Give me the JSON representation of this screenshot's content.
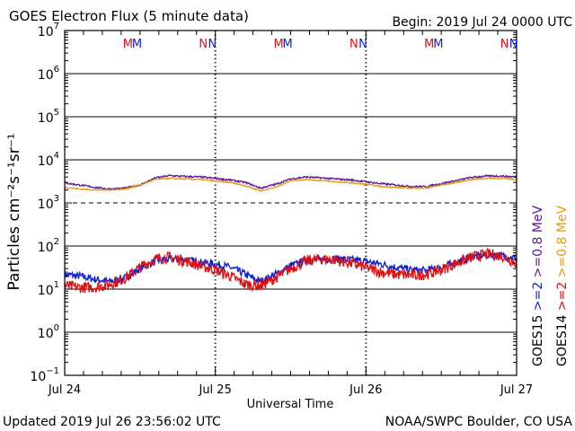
{
  "chart_data": {
    "type": "line",
    "title": "GOES Electron Flux (5 minute data)",
    "begin_label": "Begin: 2019 Jul 24 0000 UTC",
    "xlabel": "Universal Time",
    "ylabel": "Particles cm⁻²s⁻¹sr⁻¹",
    "footer_left": "Updated 2019 Jul 26 23:56:02 UTC",
    "footer_right": "NOAA/SWPC Boulder, CO USA",
    "y_scale": "log",
    "ylim": [
      0.1,
      10000000
    ],
    "y_ticks": [
      {
        "base": "10",
        "exp": "7"
      },
      {
        "base": "10",
        "exp": "6"
      },
      {
        "base": "10",
        "exp": "5"
      },
      {
        "base": "10",
        "exp": "4"
      },
      {
        "base": "10",
        "exp": "3"
      },
      {
        "base": "10",
        "exp": "2"
      },
      {
        "base": "10",
        "exp": "1"
      },
      {
        "base": "10",
        "exp": "0"
      },
      {
        "base": "10",
        "exp": "−1"
      }
    ],
    "xlim_days": [
      0,
      3
    ],
    "x_ticks": [
      "Jul 24",
      "Jul 25",
      "Jul 26",
      "Jul 27"
    ],
    "alert_threshold": 1000,
    "eclipse_markers": [
      {
        "label": "M",
        "day": 0.42,
        "color": "#e01010"
      },
      {
        "label": "M",
        "day": 0.48,
        "color": "#1020d0"
      },
      {
        "label": "N",
        "day": 0.92,
        "color": "#e01010"
      },
      {
        "label": "N",
        "day": 0.98,
        "color": "#1020d0"
      },
      {
        "label": "M",
        "day": 1.42,
        "color": "#e01010"
      },
      {
        "label": "M",
        "day": 1.48,
        "color": "#1020d0"
      },
      {
        "label": "N",
        "day": 1.92,
        "color": "#e01010"
      },
      {
        "label": "N",
        "day": 1.98,
        "color": "#1020d0"
      },
      {
        "label": "M",
        "day": 2.42,
        "color": "#e01010"
      },
      {
        "label": "M",
        "day": 2.48,
        "color": "#1020d0"
      },
      {
        "label": "N",
        "day": 2.92,
        "color": "#e01010"
      },
      {
        "label": "N",
        "day": 2.98,
        "color": "#1020d0"
      }
    ],
    "series": [
      {
        "name": "GOES15 >=0.8 MeV",
        "sat": "GOES15",
        "energy": ">=0.8",
        "unit": "MeV",
        "color": "#5a1a9a",
        "noise": 0.02,
        "x": [
          0,
          0.1,
          0.2,
          0.3,
          0.4,
          0.5,
          0.6,
          0.7,
          0.8,
          0.9,
          1.0,
          1.1,
          1.2,
          1.3,
          1.4,
          1.5,
          1.6,
          1.7,
          1.8,
          1.9,
          2.0,
          2.1,
          2.2,
          2.3,
          2.4,
          2.5,
          2.6,
          2.7,
          2.8,
          2.9,
          3.0
        ],
        "y": [
          2900,
          2600,
          2300,
          2100,
          2200,
          2600,
          3800,
          4300,
          4100,
          4000,
          3700,
          3400,
          3000,
          2200,
          2700,
          3600,
          4000,
          3800,
          3600,
          3400,
          3100,
          2800,
          2600,
          2400,
          2400,
          2800,
          3300,
          3900,
          4200,
          4200,
          4000
        ]
      },
      {
        "name": "GOES14 >=0.8 MeV",
        "sat": "GOES14",
        "energy": ">=0.8",
        "unit": "MeV",
        "color": "#e89a10",
        "noise": 0.015,
        "x": [
          0,
          0.1,
          0.2,
          0.3,
          0.4,
          0.5,
          0.6,
          0.7,
          0.8,
          0.9,
          1.0,
          1.1,
          1.2,
          1.3,
          1.4,
          1.5,
          1.6,
          1.7,
          1.8,
          1.9,
          2.0,
          2.1,
          2.2,
          2.3,
          2.4,
          2.5,
          2.6,
          2.7,
          2.8,
          2.9,
          3.0
        ],
        "y": [
          2300,
          2100,
          2000,
          2000,
          2100,
          2600,
          3500,
          3700,
          3600,
          3500,
          3200,
          3000,
          2500,
          1900,
          2300,
          3300,
          3500,
          3300,
          3100,
          2900,
          2700,
          2400,
          2300,
          2200,
          2200,
          2600,
          3000,
          3500,
          3700,
          3700,
          3500
        ]
      },
      {
        "name": "GOES15 >=2 MeV",
        "sat": "GOES15",
        "energy": ">=2",
        "unit": "MeV",
        "color": "#1020d0",
        "noise": 0.09,
        "x": [
          0,
          0.1,
          0.2,
          0.3,
          0.4,
          0.5,
          0.6,
          0.7,
          0.8,
          0.9,
          1.0,
          1.1,
          1.2,
          1.3,
          1.4,
          1.5,
          1.6,
          1.7,
          1.8,
          1.9,
          2.0,
          2.1,
          2.2,
          2.3,
          2.4,
          2.5,
          2.6,
          2.7,
          2.8,
          2.9,
          3.0
        ],
        "y": [
          22,
          20,
          17,
          15,
          18,
          30,
          45,
          50,
          48,
          42,
          38,
          32,
          22,
          15,
          22,
          35,
          45,
          48,
          50,
          48,
          44,
          38,
          32,
          28,
          27,
          32,
          42,
          55,
          62,
          60,
          52
        ]
      },
      {
        "name": "GOES14 >=2 MeV",
        "sat": "GOES14",
        "energy": ">=2",
        "unit": "MeV",
        "color": "#e01010",
        "noise": 0.13,
        "x": [
          0,
          0.1,
          0.2,
          0.3,
          0.4,
          0.5,
          0.6,
          0.7,
          0.8,
          0.9,
          1.0,
          1.1,
          1.2,
          1.3,
          1.4,
          1.5,
          1.6,
          1.7,
          1.8,
          1.9,
          2.0,
          2.1,
          2.2,
          2.3,
          2.4,
          2.5,
          2.6,
          2.7,
          2.8,
          2.9,
          3.0
        ],
        "y": [
          12,
          11,
          11,
          13,
          18,
          32,
          50,
          55,
          45,
          35,
          28,
          20,
          13,
          12,
          18,
          30,
          45,
          50,
          48,
          40,
          32,
          25,
          22,
          21,
          22,
          28,
          40,
          55,
          65,
          60,
          40
        ]
      }
    ]
  }
}
